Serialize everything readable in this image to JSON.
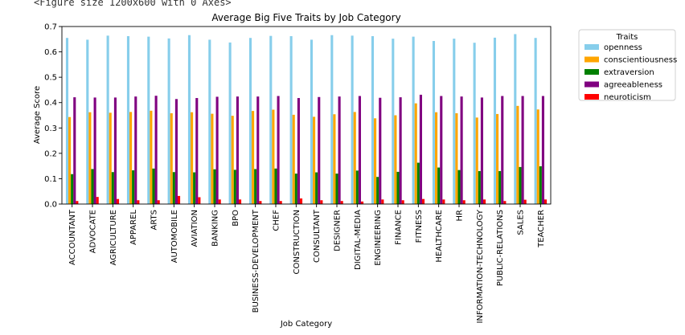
{
  "figure_caption": "<Figure size 1200x600 with 0 Axes>",
  "chart_data": {
    "type": "bar",
    "title": "Average Big Five Traits by Job Category",
    "xlabel": "Job Category",
    "ylabel": "Average Score",
    "ylim": [
      0,
      0.7
    ],
    "yticks": [
      "0.0",
      "0.1",
      "0.2",
      "0.3",
      "0.4",
      "0.5",
      "0.6",
      "0.7"
    ],
    "grid": false,
    "legend": {
      "title": "Traits",
      "placement": "outside-top-right"
    },
    "categories": [
      "ACCOUNTANT",
      "ADVOCATE",
      "AGRICULTURE",
      "APPAREL",
      "ARTS",
      "AUTOMOBILE",
      "AVIATION",
      "BANKING",
      "BPO",
      "BUSINESS-DEVELOPMENT",
      "CHEF",
      "CONSTRUCTION",
      "CONSULTANT",
      "DESIGNER",
      "DIGITAL-MEDIA",
      "ENGINEERING",
      "FINANCE",
      "FITNESS",
      "HEALTHCARE",
      "HR",
      "INFORMATION-TECHNOLOGY",
      "PUBLIC-RELATIONS",
      "SALES",
      "TEACHER"
    ],
    "series": [
      {
        "name": "openness",
        "color": "#87ceeb",
        "values": [
          0.655,
          0.648,
          0.664,
          0.662,
          0.66,
          0.653,
          0.666,
          0.648,
          0.637,
          0.655,
          0.663,
          0.662,
          0.648,
          0.666,
          0.664,
          0.662,
          0.652,
          0.66,
          0.643,
          0.652,
          0.636,
          0.656,
          0.67,
          0.655
        ]
      },
      {
        "name": "conscientiousness",
        "color": "#ffa500",
        "values": [
          0.343,
          0.362,
          0.36,
          0.363,
          0.368,
          0.358,
          0.362,
          0.356,
          0.348,
          0.367,
          0.372,
          0.352,
          0.344,
          0.354,
          0.363,
          0.338,
          0.35,
          0.397,
          0.362,
          0.358,
          0.341,
          0.355,
          0.387,
          0.373
        ]
      },
      {
        "name": "extraversion",
        "color": "#008000",
        "values": [
          0.118,
          0.138,
          0.126,
          0.133,
          0.14,
          0.126,
          0.125,
          0.137,
          0.135,
          0.138,
          0.14,
          0.12,
          0.125,
          0.12,
          0.132,
          0.107,
          0.127,
          0.163,
          0.144,
          0.134,
          0.13,
          0.13,
          0.146,
          0.149
        ]
      },
      {
        "name": "agreeableness",
        "color": "#800080",
        "values": [
          0.421,
          0.42,
          0.42,
          0.424,
          0.427,
          0.414,
          0.418,
          0.423,
          0.424,
          0.424,
          0.426,
          0.418,
          0.422,
          0.424,
          0.426,
          0.419,
          0.421,
          0.431,
          0.426,
          0.424,
          0.42,
          0.426,
          0.426,
          0.426
        ]
      },
      {
        "name": "neuroticism",
        "color": "#ff0000",
        "values": [
          0.012,
          0.028,
          0.02,
          0.015,
          0.015,
          0.032,
          0.027,
          0.018,
          0.018,
          0.012,
          0.012,
          0.022,
          0.015,
          0.012,
          0.01,
          0.018,
          0.015,
          0.02,
          0.018,
          0.015,
          0.018,
          0.012,
          0.017,
          0.018
        ]
      }
    ]
  }
}
